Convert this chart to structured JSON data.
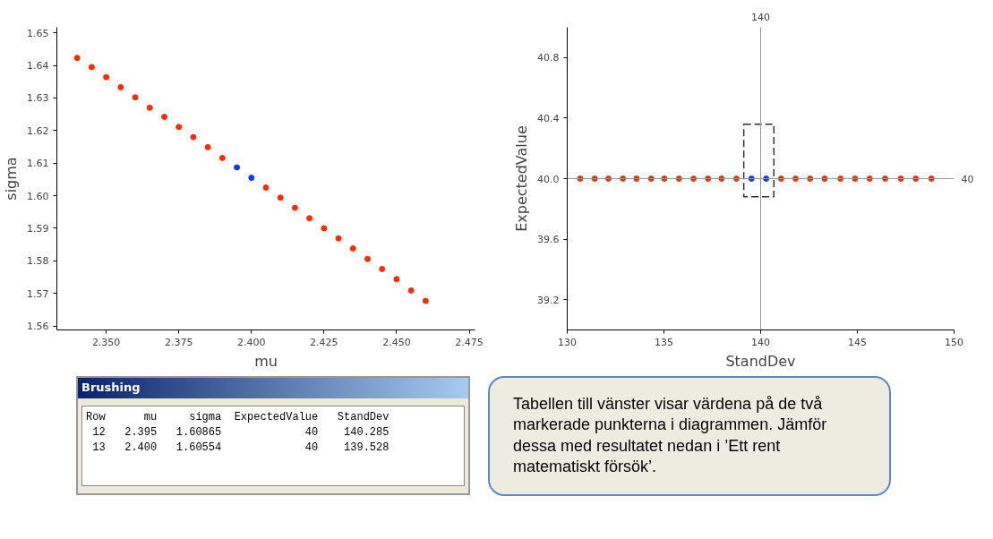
{
  "chart_data": [
    {
      "type": "scatter",
      "xlabel": "mu",
      "ylabel": "sigma",
      "xlim": [
        2.333,
        2.477
      ],
      "ylim": [
        1.5588,
        1.6517
      ],
      "xticks": [
        {
          "value": 2.35,
          "label": "2.350"
        },
        {
          "value": 2.375,
          "label": "2.375"
        },
        {
          "value": 2.4,
          "label": "2.400"
        },
        {
          "value": 2.425,
          "label": "2.425"
        },
        {
          "value": 2.45,
          "label": "2.450"
        },
        {
          "value": 2.475,
          "label": "2.475"
        }
      ],
      "yticks": [
        1.56,
        1.57,
        1.58,
        1.59,
        {
          "value": 1.6,
          "label": "1.60"
        },
        1.61,
        1.62,
        1.63,
        1.64,
        1.65
      ],
      "marker": "circle",
      "grid": false,
      "series": [
        {
          "color": "#ff2a00",
          "x": [
            2.34,
            2.345,
            2.35,
            2.355,
            2.36,
            2.365,
            2.37,
            2.375,
            2.38,
            2.385,
            2.39,
            2.405,
            2.41,
            2.415,
            2.42,
            2.425,
            2.43,
            2.435,
            2.44,
            2.445,
            2.45,
            2.455,
            2.46
          ],
          "values": [
            1.6423,
            1.6395,
            1.6364,
            1.6333,
            1.6302,
            1.627,
            1.6242,
            1.6211,
            1.618,
            1.6149,
            1.6116,
            1.6025,
            1.5994,
            1.5963,
            1.5931,
            1.59,
            1.5869,
            1.5838,
            1.5806,
            1.5775,
            1.5744,
            1.5709,
            1.5677
          ]
        },
        {
          "color": "#0a3cff",
          "x": [
            2.395,
            2.4
          ],
          "values": [
            1.6087,
            1.6055
          ]
        }
      ]
    },
    {
      "type": "scatter",
      "xlabel": "StandDev",
      "ylabel": "ExpectedValue",
      "xlim": [
        130,
        150
      ],
      "ylim": [
        39.0,
        41.0
      ],
      "xticks": [
        130,
        135,
        140,
        145,
        150
      ],
      "yticks": [
        39.2,
        39.6,
        {
          "value": 40,
          "label": "40.0"
        },
        40.4,
        40.8
      ],
      "marker": "circle",
      "grid": false,
      "ref_lines": [
        {
          "axis": "x",
          "value": 140,
          "label": "140",
          "color": "#999999"
        },
        {
          "axis": "y",
          "value": 40,
          "label": "40",
          "color": "#999999"
        }
      ],
      "series": [
        {
          "color": "#ff2a00",
          "x": [
            130.67,
            131.42,
            132.13,
            132.88,
            133.58,
            134.34,
            135.02,
            135.78,
            136.53,
            137.28,
            137.98,
            138.75,
            141.06,
            141.81,
            142.56,
            143.31,
            144.13,
            144.88,
            145.64,
            146.44,
            147.25,
            148.02,
            148.83
          ],
          "values": [
            40,
            40,
            40,
            40,
            40,
            40,
            40,
            40,
            40,
            40,
            40,
            40,
            40,
            40,
            40,
            40,
            40,
            40,
            40,
            40,
            40,
            40,
            40
          ]
        },
        {
          "color": "#0a3cff",
          "x": [
            139.528,
            140.285
          ],
          "values": [
            40,
            40
          ]
        }
      ]
    },
    {
      "type": "other",
      "title": "Brushing",
      "annotations": [
        "Row      mu     sigma  ExpectedValue   StandDev",
        " 12   2.395   1.60865             40    140.285",
        " 13   2.400   1.60554             40    139.528"
      ]
    },
    {
      "type": "other",
      "annotations": [
        "Tabellen till vänster visar värdena på de två markerade punkterna i diagrammen. Jämför dessa med resultatet nedan i ’Ett rent matematiskt försök’."
      ]
    }
  ]
}
